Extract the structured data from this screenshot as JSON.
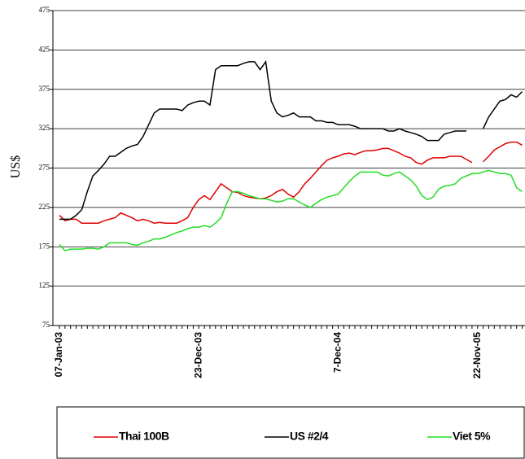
{
  "chart_data": {
    "type": "line",
    "y_label": "US$",
    "categories": [
      "07-Jan-03",
      null,
      null,
      null,
      null,
      null,
      null,
      null,
      null,
      null,
      null,
      null,
      null,
      null,
      null,
      null,
      null,
      null,
      null,
      null,
      null,
      null,
      null,
      null,
      null,
      "23-Dec-03",
      null,
      null,
      null,
      null,
      null,
      null,
      null,
      null,
      null,
      null,
      null,
      null,
      null,
      null,
      null,
      null,
      null,
      null,
      null,
      null,
      null,
      null,
      null,
      null,
      "7-Dec-04",
      null,
      null,
      null,
      null,
      null,
      null,
      null,
      null,
      null,
      null,
      null,
      null,
      null,
      null,
      null,
      null,
      null,
      null,
      null,
      null,
      null,
      null,
      null,
      null,
      "22-Nov-05",
      null,
      null,
      null,
      null,
      null,
      null,
      null,
      null
    ],
    "series": [
      {
        "name": "Thai 100B",
        "color": "#e00000",
        "values": [
          215,
          208,
          210,
          210,
          205,
          205,
          205,
          205,
          208,
          210,
          212,
          218,
          215,
          212,
          208,
          210,
          208,
          205,
          206,
          205,
          205,
          205,
          208,
          212,
          225,
          235,
          240,
          235,
          245,
          255,
          250,
          245,
          244,
          240,
          238,
          237,
          236,
          237,
          240,
          245,
          248,
          242,
          238,
          245,
          255,
          262,
          270,
          278,
          285,
          288,
          290,
          293,
          294,
          292,
          295,
          297,
          297,
          298,
          300,
          300,
          297,
          294,
          290,
          288,
          282,
          280,
          285,
          288,
          288,
          288,
          290,
          290,
          290,
          286,
          282,
          null,
          283,
          290,
          298,
          302,
          306,
          308,
          308,
          304
        ]
      },
      {
        "name": "US #2/4",
        "color": "#000000",
        "values": [
          210,
          210,
          210,
          215,
          222,
          245,
          265,
          272,
          280,
          290,
          290,
          295,
          300,
          303,
          305,
          315,
          330,
          345,
          350,
          350,
          350,
          350,
          348,
          355,
          358,
          360,
          360,
          355,
          400,
          405,
          405,
          405,
          405,
          408,
          410,
          410,
          400,
          410,
          360,
          345,
          340,
          342,
          345,
          340,
          340,
          340,
          335,
          335,
          333,
          333,
          330,
          330,
          330,
          328,
          325,
          325,
          325,
          325,
          325,
          322,
          322,
          325,
          322,
          320,
          318,
          315,
          310,
          310,
          310,
          318,
          320,
          322,
          322,
          322,
          null,
          null,
          325,
          340,
          350,
          360,
          362,
          368,
          365,
          372
        ]
      },
      {
        "name": "Viet 5%",
        "color": "#22dd22",
        "values": [
          178,
          170,
          172,
          172,
          172,
          173,
          173,
          172,
          175,
          180,
          180,
          180,
          180,
          178,
          177,
          180,
          182,
          185,
          185,
          187,
          190,
          193,
          195,
          198,
          200,
          200,
          202,
          200,
          205,
          212,
          230,
          245,
          245,
          243,
          240,
          238,
          236,
          236,
          234,
          232,
          233,
          236,
          236,
          232,
          228,
          225,
          230,
          235,
          238,
          240,
          242,
          250,
          258,
          265,
          270,
          270,
          270,
          270,
          266,
          265,
          268,
          270,
          265,
          260,
          252,
          240,
          235,
          238,
          248,
          252,
          253,
          255,
          262,
          265,
          268,
          268,
          270,
          272,
          270,
          268,
          268,
          266,
          250,
          245
        ]
      }
    ],
    "ylim": [
      75,
      475
    ],
    "yticks": [
      75,
      125,
      175,
      225,
      275,
      325,
      375,
      425,
      475
    ],
    "grid": true,
    "legend": "bottom"
  }
}
